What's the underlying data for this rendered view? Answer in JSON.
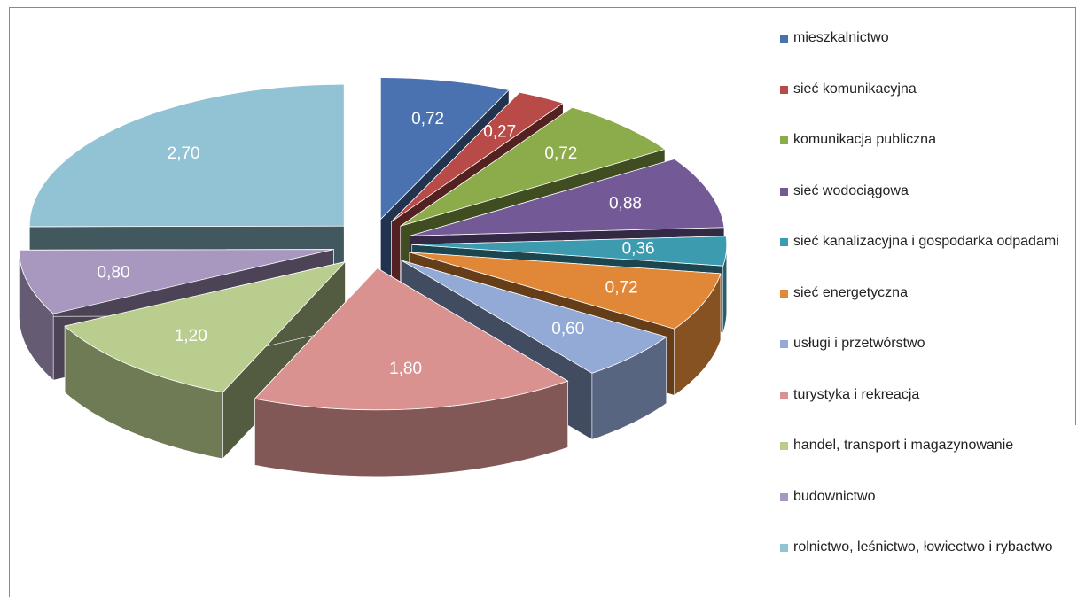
{
  "chart_data": {
    "type": "pie",
    "categories": [
      "mieszkalnictwo",
      "sieć komunikacyjna",
      "komunikacja publiczna",
      "sieć wodociągowa",
      "sieć kanalizacyjna i gospodarka odpadami",
      "sieć energetyczna",
      "usługi i przetwórstwo",
      "turystyka i rekreacja",
      "handel, transport i magazynowanie",
      "budownictwo",
      "rolnictwo, leśnictwo, łowiectwo i rybactwo"
    ],
    "values": [
      0.72,
      0.27,
      0.72,
      0.88,
      0.36,
      0.72,
      0.6,
      1.8,
      1.2,
      0.8,
      2.7
    ],
    "value_labels": [
      "0,72",
      "0,27",
      "0,72",
      "0,88",
      "0,36",
      "0,72",
      "0,60",
      "1,80",
      "1,20",
      "0,80",
      "2,70"
    ],
    "colors": [
      "#4a72b0",
      "#b84a47",
      "#8cab4a",
      "#735a96",
      "#3d9bb0",
      "#e08838",
      "#93a9d6",
      "#d99290",
      "#b8cd8e",
      "#a898c0",
      "#92c3d4"
    ],
    "legend": "right"
  }
}
